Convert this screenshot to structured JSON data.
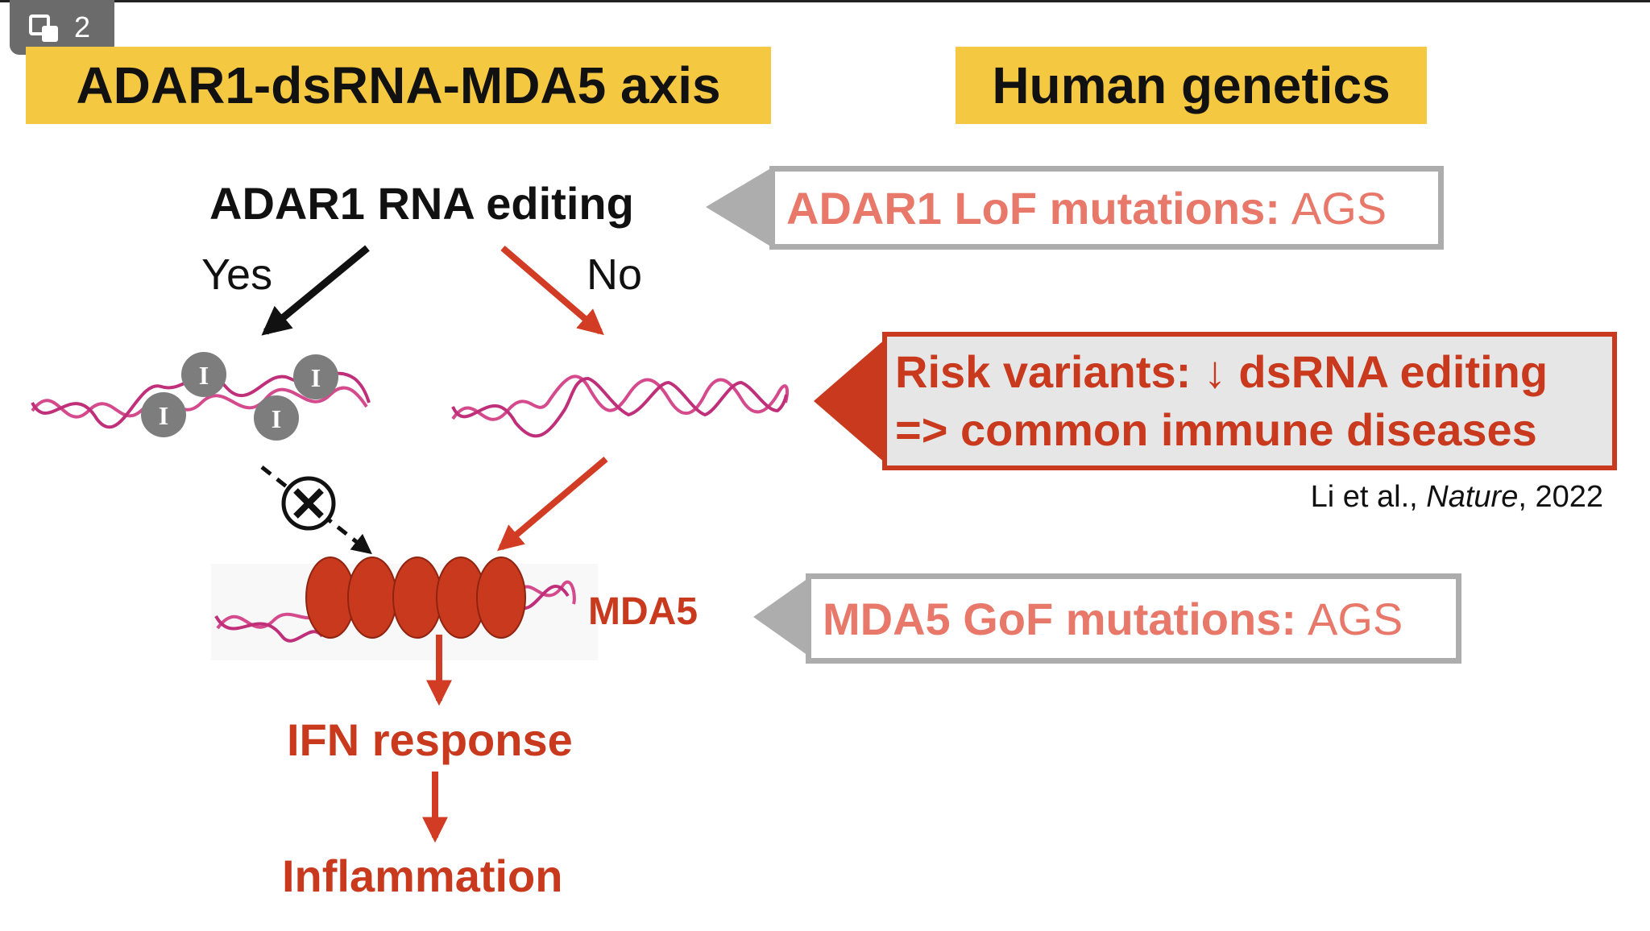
{
  "badge": {
    "icon": "slides-icon",
    "count": "2"
  },
  "titles": {
    "left": "ADAR1-dsRNA-MDA5 axis",
    "right": "Human genetics"
  },
  "flow": {
    "top": "ADAR1 RNA editing",
    "yes": "Yes",
    "no": "No",
    "inosine": "I",
    "mda5": "MDA5",
    "ifn": "IFN response",
    "inflammation": "Inflammation"
  },
  "genetics": {
    "adar1_lead": "ADAR1 LoF mutations:",
    "adar1_tail": "AGS",
    "risk_line1": "Risk variants: ↓ dsRNA editing",
    "risk_line2": "=> common immune diseases",
    "citation_authors": "Li et al., ",
    "citation_journal": "Nature",
    "citation_year": ", 2022",
    "mda5_lead": "MDA5 GoF mutations:",
    "mda5_tail": "AGS"
  },
  "colors": {
    "accent_red": "#c8391e",
    "salmon": "#e8786a",
    "title_yellow": "#f5c842",
    "grey": "#adadad",
    "rna_pink": "#d44a8c"
  }
}
